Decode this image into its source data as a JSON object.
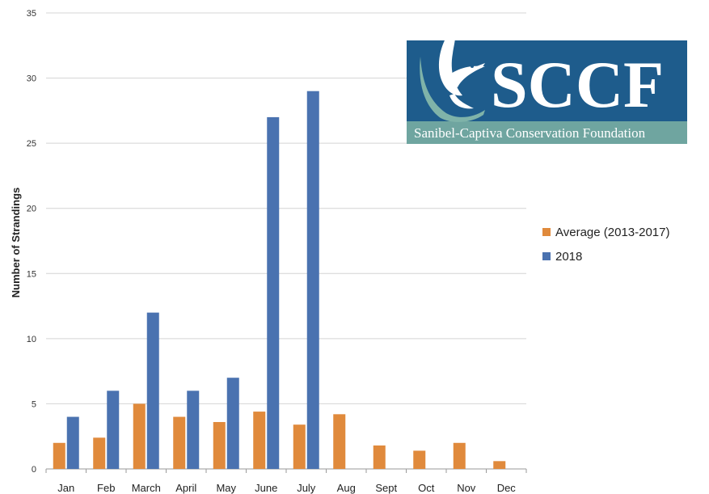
{
  "chart_data": {
    "type": "bar",
    "title": "",
    "xlabel": "",
    "ylabel": "Number of Strandings",
    "ylim": [
      0,
      35
    ],
    "yticks": [
      0,
      5,
      10,
      15,
      20,
      25,
      30,
      35
    ],
    "grid": true,
    "legend_position": "right",
    "categories": [
      "Jan",
      "Feb",
      "March",
      "April",
      "May",
      "June",
      "July",
      "Aug",
      "Sept",
      "Oct",
      "Nov",
      "Dec"
    ],
    "series": [
      {
        "name": "Average (2013-2017)",
        "color": "#E08A3C",
        "values": [
          2,
          2.4,
          5,
          4,
          3.6,
          4.4,
          3.4,
          4.2,
          1.8,
          1.4,
          2,
          0.6
        ]
      },
      {
        "name": "2018",
        "color": "#4A72B0",
        "values": [
          4,
          6,
          12,
          6,
          7,
          27,
          29,
          null,
          null,
          null,
          null,
          null
        ]
      }
    ]
  },
  "logo": {
    "wordmark": "SCCF",
    "subtitle": "Sanibel-Captiva Conservation Foundation",
    "bg_color": "#1E5C8C",
    "band_color": "#6FA5A0"
  }
}
